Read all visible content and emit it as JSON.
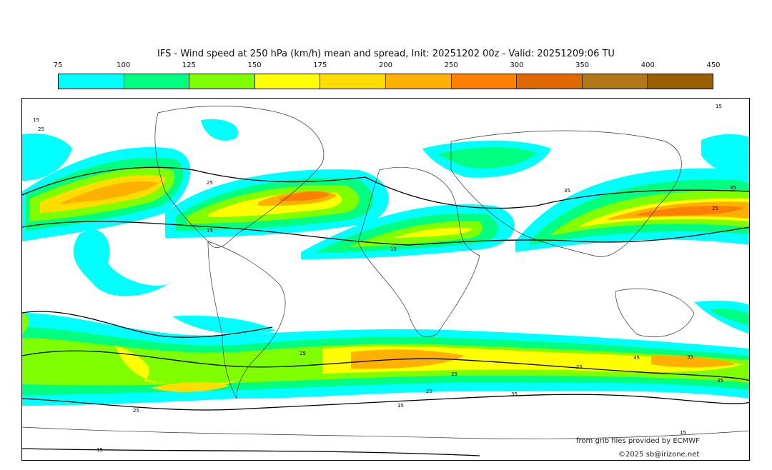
{
  "title": "IFS - Wind speed at 250 hPa (km/h) mean and spread, Init: 20251202 00z - Valid: 20251209:06 TU",
  "colorbar": {
    "ticks": [
      "75",
      "100",
      "125",
      "150",
      "175",
      "200",
      "250",
      "300",
      "350",
      "400",
      "450"
    ],
    "colors": [
      "#00ffff",
      "#00ff80",
      "#80ff00",
      "#ffff00",
      "#ffdd00",
      "#ffb000",
      "#ff8000",
      "#e06800",
      "#b07818",
      "#986000"
    ]
  },
  "contour_labels": [
    "15",
    "25",
    "35"
  ],
  "credits": {
    "source": "from grib files provided by ECMWF",
    "copyright": "©2025 sb@irizone.net"
  }
}
